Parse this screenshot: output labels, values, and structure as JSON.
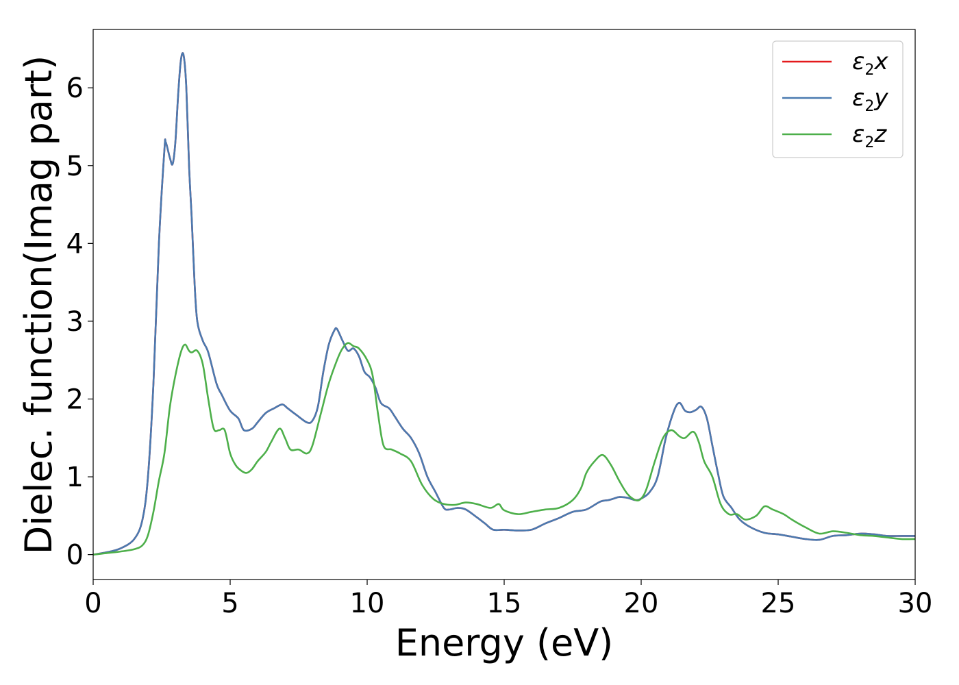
{
  "chart_data": {
    "type": "line",
    "title": "",
    "xlabel": "Energy (eV)",
    "ylabel": "Dielec. function(Imag part)",
    "xlim": [
      0,
      30
    ],
    "ylim": [
      -0.32,
      6.75
    ],
    "xticks": [
      0,
      5,
      10,
      15,
      20,
      25,
      30
    ],
    "yticks": [
      0,
      1,
      2,
      3,
      4,
      5,
      6
    ],
    "grid": false,
    "legend_position": "top-right",
    "series": [
      {
        "name": "ε2x",
        "sym": "ε",
        "sub": "2",
        "axis": "x",
        "color": "#e41a1c",
        "share": "xy",
        "points": []
      },
      {
        "name": "ε2y",
        "sym": "ε",
        "sub": "2",
        "axis": "y",
        "color": "#4a7ab0",
        "points": [
          [
            0,
            0
          ],
          [
            0.5,
            0.03
          ],
          [
            1.0,
            0.08
          ],
          [
            1.5,
            0.2
          ],
          [
            1.8,
            0.45
          ],
          [
            2.0,
            1.0
          ],
          [
            2.2,
            2.2
          ],
          [
            2.4,
            4.0
          ],
          [
            2.6,
            5.2
          ],
          [
            2.65,
            5.3
          ],
          [
            2.8,
            5.1
          ],
          [
            2.9,
            5.02
          ],
          [
            3.0,
            5.3
          ],
          [
            3.1,
            5.9
          ],
          [
            3.2,
            6.35
          ],
          [
            3.3,
            6.42
          ],
          [
            3.4,
            6.0
          ],
          [
            3.5,
            5.0
          ],
          [
            3.6,
            4.3
          ],
          [
            3.7,
            3.5
          ],
          [
            3.8,
            3.0
          ],
          [
            4.0,
            2.75
          ],
          [
            4.2,
            2.6
          ],
          [
            4.5,
            2.2
          ],
          [
            4.7,
            2.05
          ],
          [
            5.0,
            1.85
          ],
          [
            5.3,
            1.75
          ],
          [
            5.5,
            1.6
          ],
          [
            5.8,
            1.62
          ],
          [
            6.0,
            1.7
          ],
          [
            6.3,
            1.82
          ],
          [
            6.6,
            1.88
          ],
          [
            6.9,
            1.93
          ],
          [
            7.1,
            1.88
          ],
          [
            7.4,
            1.8
          ],
          [
            7.8,
            1.7
          ],
          [
            8.0,
            1.72
          ],
          [
            8.2,
            1.9
          ],
          [
            8.4,
            2.35
          ],
          [
            8.6,
            2.7
          ],
          [
            8.8,
            2.88
          ],
          [
            8.9,
            2.9
          ],
          [
            9.1,
            2.75
          ],
          [
            9.3,
            2.62
          ],
          [
            9.5,
            2.65
          ],
          [
            9.7,
            2.55
          ],
          [
            9.9,
            2.35
          ],
          [
            10.1,
            2.28
          ],
          [
            10.3,
            2.15
          ],
          [
            10.5,
            1.95
          ],
          [
            10.8,
            1.88
          ],
          [
            11.0,
            1.78
          ],
          [
            11.3,
            1.62
          ],
          [
            11.6,
            1.5
          ],
          [
            11.9,
            1.3
          ],
          [
            12.2,
            1.0
          ],
          [
            12.5,
            0.8
          ],
          [
            12.8,
            0.6
          ],
          [
            13.0,
            0.58
          ],
          [
            13.3,
            0.6
          ],
          [
            13.6,
            0.58
          ],
          [
            14.0,
            0.48
          ],
          [
            14.3,
            0.4
          ],
          [
            14.6,
            0.32
          ],
          [
            15.0,
            0.32
          ],
          [
            15.5,
            0.31
          ],
          [
            16.0,
            0.32
          ],
          [
            16.5,
            0.4
          ],
          [
            17.0,
            0.47
          ],
          [
            17.5,
            0.55
          ],
          [
            18.0,
            0.58
          ],
          [
            18.5,
            0.68
          ],
          [
            18.8,
            0.7
          ],
          [
            19.0,
            0.72
          ],
          [
            19.2,
            0.74
          ],
          [
            19.5,
            0.73
          ],
          [
            19.8,
            0.7
          ],
          [
            20.0,
            0.72
          ],
          [
            20.3,
            0.8
          ],
          [
            20.6,
            1.0
          ],
          [
            20.9,
            1.5
          ],
          [
            21.2,
            1.85
          ],
          [
            21.4,
            1.95
          ],
          [
            21.6,
            1.85
          ],
          [
            21.8,
            1.83
          ],
          [
            22.0,
            1.86
          ],
          [
            22.2,
            1.9
          ],
          [
            22.4,
            1.75
          ],
          [
            22.6,
            1.4
          ],
          [
            22.8,
            1.05
          ],
          [
            23.0,
            0.75
          ],
          [
            23.3,
            0.6
          ],
          [
            23.6,
            0.45
          ],
          [
            24.0,
            0.35
          ],
          [
            24.5,
            0.28
          ],
          [
            25.0,
            0.26
          ],
          [
            25.5,
            0.23
          ],
          [
            26.0,
            0.2
          ],
          [
            26.5,
            0.19
          ],
          [
            27.0,
            0.24
          ],
          [
            27.5,
            0.25
          ],
          [
            28.0,
            0.27
          ],
          [
            28.5,
            0.26
          ],
          [
            29.0,
            0.24
          ],
          [
            29.5,
            0.24
          ],
          [
            30.0,
            0.24
          ]
        ]
      },
      {
        "name": "ε2z",
        "sym": "ε",
        "sub": "2",
        "axis": "z",
        "color": "#4daf4a",
        "points": [
          [
            0,
            0
          ],
          [
            0.5,
            0.02
          ],
          [
            1.0,
            0.04
          ],
          [
            1.5,
            0.07
          ],
          [
            1.8,
            0.12
          ],
          [
            2.0,
            0.25
          ],
          [
            2.2,
            0.55
          ],
          [
            2.4,
            0.95
          ],
          [
            2.6,
            1.3
          ],
          [
            2.8,
            1.9
          ],
          [
            3.0,
            2.3
          ],
          [
            3.2,
            2.6
          ],
          [
            3.35,
            2.7
          ],
          [
            3.5,
            2.62
          ],
          [
            3.6,
            2.6
          ],
          [
            3.8,
            2.62
          ],
          [
            4.0,
            2.45
          ],
          [
            4.2,
            2.0
          ],
          [
            4.4,
            1.62
          ],
          [
            4.6,
            1.6
          ],
          [
            4.8,
            1.6
          ],
          [
            5.0,
            1.3
          ],
          [
            5.2,
            1.15
          ],
          [
            5.4,
            1.08
          ],
          [
            5.6,
            1.05
          ],
          [
            5.8,
            1.1
          ],
          [
            6.0,
            1.2
          ],
          [
            6.3,
            1.32
          ],
          [
            6.5,
            1.45
          ],
          [
            6.8,
            1.62
          ],
          [
            7.0,
            1.5
          ],
          [
            7.2,
            1.35
          ],
          [
            7.5,
            1.35
          ],
          [
            7.8,
            1.3
          ],
          [
            8.0,
            1.4
          ],
          [
            8.3,
            1.8
          ],
          [
            8.6,
            2.2
          ],
          [
            8.9,
            2.5
          ],
          [
            9.1,
            2.65
          ],
          [
            9.3,
            2.72
          ],
          [
            9.5,
            2.68
          ],
          [
            9.7,
            2.65
          ],
          [
            10.0,
            2.5
          ],
          [
            10.2,
            2.3
          ],
          [
            10.4,
            1.8
          ],
          [
            10.6,
            1.4
          ],
          [
            10.9,
            1.35
          ],
          [
            11.2,
            1.3
          ],
          [
            11.6,
            1.2
          ],
          [
            12.0,
            0.9
          ],
          [
            12.4,
            0.72
          ],
          [
            12.8,
            0.65
          ],
          [
            13.2,
            0.64
          ],
          [
            13.6,
            0.67
          ],
          [
            14.0,
            0.65
          ],
          [
            14.5,
            0.6
          ],
          [
            14.8,
            0.65
          ],
          [
            15.0,
            0.57
          ],
          [
            15.5,
            0.52
          ],
          [
            16.0,
            0.55
          ],
          [
            16.5,
            0.58
          ],
          [
            17.0,
            0.6
          ],
          [
            17.5,
            0.7
          ],
          [
            17.8,
            0.85
          ],
          [
            18.0,
            1.05
          ],
          [
            18.3,
            1.2
          ],
          [
            18.6,
            1.28
          ],
          [
            18.9,
            1.15
          ],
          [
            19.2,
            0.95
          ],
          [
            19.5,
            0.78
          ],
          [
            19.8,
            0.7
          ],
          [
            20.0,
            0.72
          ],
          [
            20.2,
            0.85
          ],
          [
            20.5,
            1.2
          ],
          [
            20.8,
            1.5
          ],
          [
            21.1,
            1.6
          ],
          [
            21.4,
            1.52
          ],
          [
            21.6,
            1.5
          ],
          [
            21.9,
            1.58
          ],
          [
            22.1,
            1.45
          ],
          [
            22.3,
            1.2
          ],
          [
            22.6,
            1.0
          ],
          [
            22.9,
            0.65
          ],
          [
            23.2,
            0.52
          ],
          [
            23.5,
            0.52
          ],
          [
            23.8,
            0.45
          ],
          [
            24.2,
            0.5
          ],
          [
            24.5,
            0.62
          ],
          [
            24.8,
            0.58
          ],
          [
            25.2,
            0.52
          ],
          [
            25.5,
            0.45
          ],
          [
            26.0,
            0.35
          ],
          [
            26.5,
            0.27
          ],
          [
            27.0,
            0.3
          ],
          [
            27.5,
            0.28
          ],
          [
            28.0,
            0.25
          ],
          [
            28.5,
            0.24
          ],
          [
            29.0,
            0.22
          ],
          [
            29.5,
            0.2
          ],
          [
            30.0,
            0.2
          ]
        ]
      }
    ]
  }
}
